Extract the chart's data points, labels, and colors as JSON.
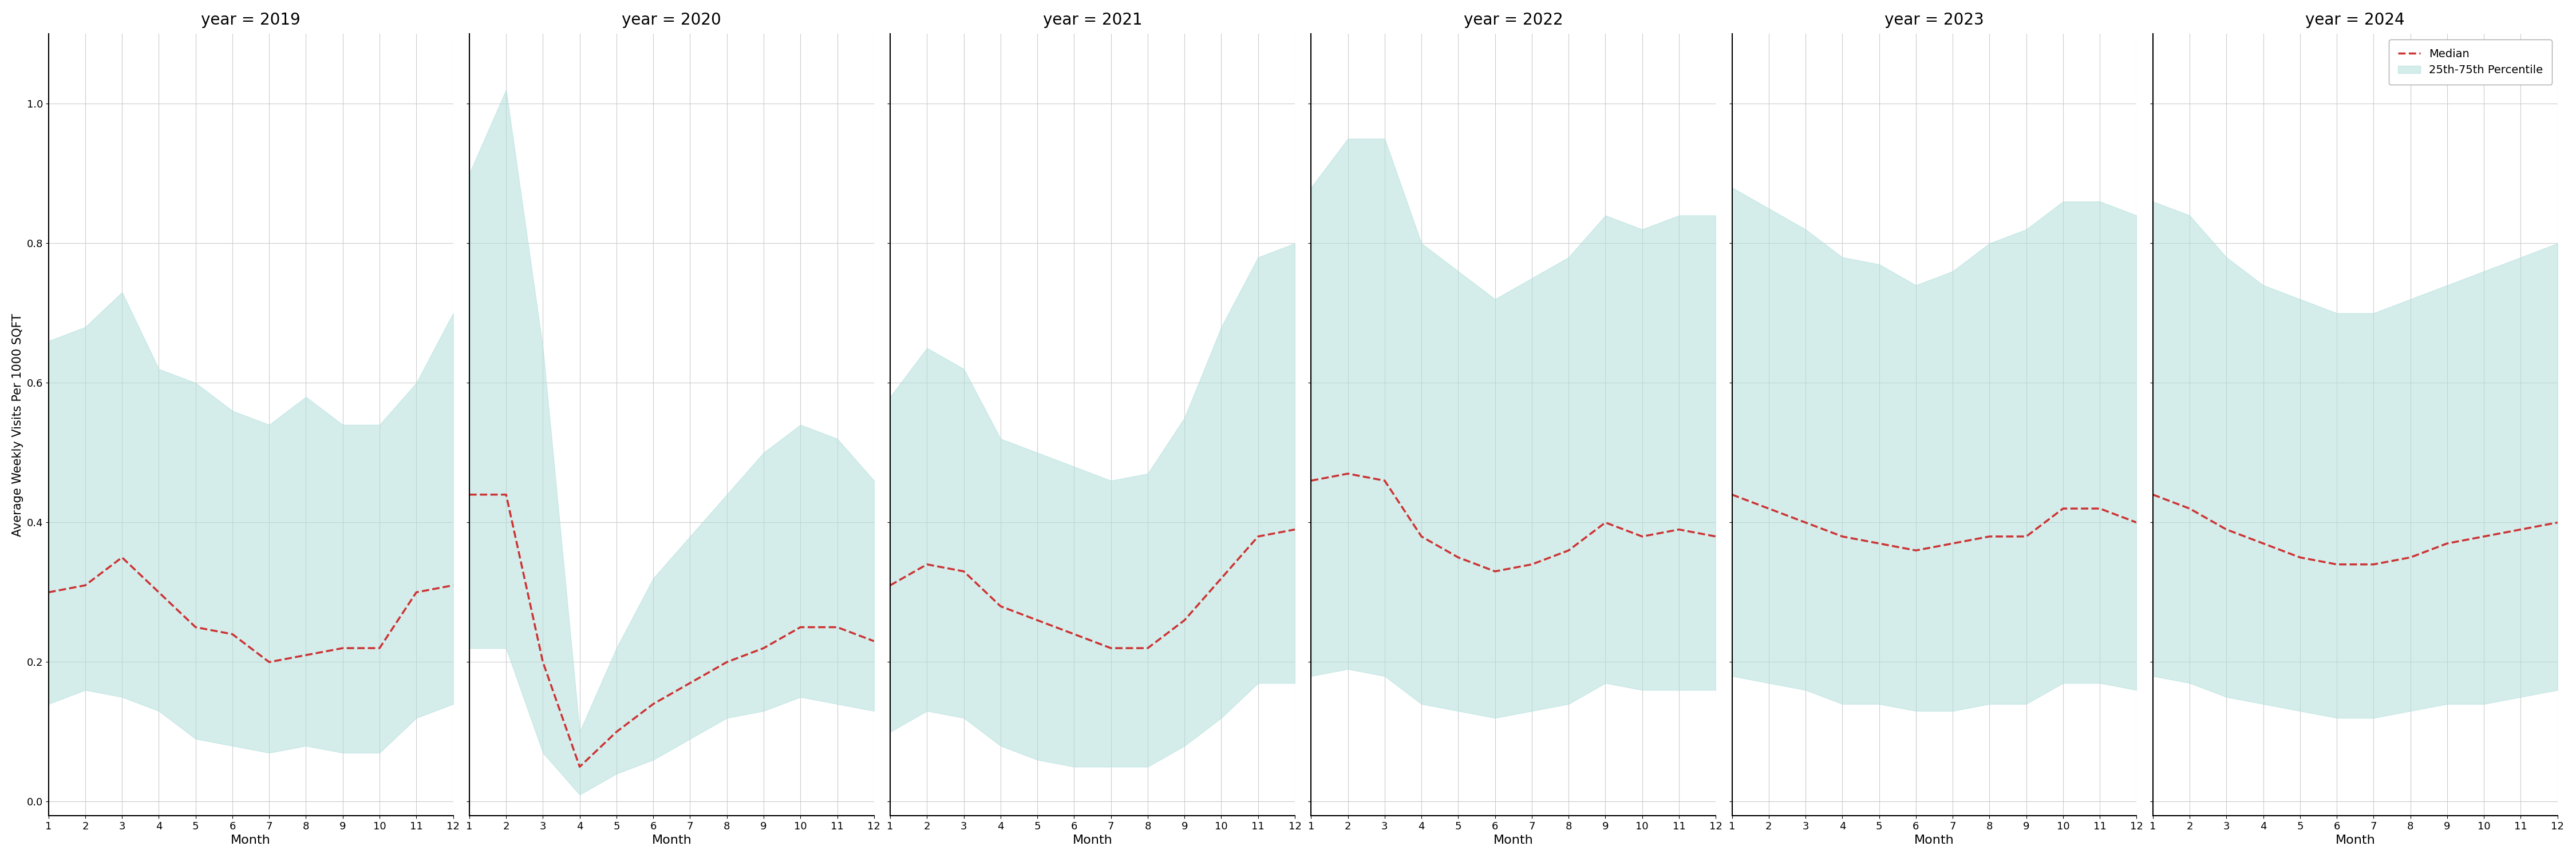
{
  "years": [
    2019,
    2020,
    2021,
    2022,
    2023,
    2024
  ],
  "months": [
    1,
    2,
    3,
    4,
    5,
    6,
    7,
    8,
    9,
    10,
    11,
    12
  ],
  "median": {
    "2019": [
      0.3,
      0.31,
      0.35,
      0.3,
      0.25,
      0.24,
      0.2,
      0.21,
      0.22,
      0.22,
      0.3,
      0.31
    ],
    "2020": [
      0.44,
      0.44,
      0.2,
      0.05,
      0.1,
      0.14,
      0.17,
      0.2,
      0.22,
      0.25,
      0.25,
      0.23
    ],
    "2021": [
      0.31,
      0.34,
      0.33,
      0.28,
      0.26,
      0.24,
      0.22,
      0.22,
      0.26,
      0.32,
      0.38,
      0.39
    ],
    "2022": [
      0.46,
      0.47,
      0.46,
      0.38,
      0.35,
      0.33,
      0.34,
      0.36,
      0.4,
      0.38,
      0.39,
      0.38
    ],
    "2023": [
      0.44,
      0.42,
      0.4,
      0.38,
      0.37,
      0.36,
      0.37,
      0.38,
      0.38,
      0.42,
      0.42,
      0.4
    ],
    "2024": [
      0.44,
      0.42,
      0.39,
      0.37,
      0.35,
      0.34,
      0.34,
      0.35,
      0.37,
      0.38,
      0.39,
      0.4
    ]
  },
  "p25": {
    "2019": [
      0.14,
      0.16,
      0.15,
      0.13,
      0.09,
      0.08,
      0.07,
      0.08,
      0.07,
      0.07,
      0.12,
      0.14
    ],
    "2020": [
      0.22,
      0.22,
      0.07,
      0.01,
      0.04,
      0.06,
      0.09,
      0.12,
      0.13,
      0.15,
      0.14,
      0.13
    ],
    "2021": [
      0.1,
      0.13,
      0.12,
      0.08,
      0.06,
      0.05,
      0.05,
      0.05,
      0.08,
      0.12,
      0.17,
      0.17
    ],
    "2022": [
      0.18,
      0.19,
      0.18,
      0.14,
      0.13,
      0.12,
      0.13,
      0.14,
      0.17,
      0.16,
      0.16,
      0.16
    ],
    "2023": [
      0.18,
      0.17,
      0.16,
      0.14,
      0.14,
      0.13,
      0.13,
      0.14,
      0.14,
      0.17,
      0.17,
      0.16
    ],
    "2024": [
      0.18,
      0.17,
      0.15,
      0.14,
      0.13,
      0.12,
      0.12,
      0.13,
      0.14,
      0.14,
      0.15,
      0.16
    ]
  },
  "p75": {
    "2019": [
      0.66,
      0.68,
      0.73,
      0.62,
      0.6,
      0.56,
      0.54,
      0.58,
      0.54,
      0.54,
      0.6,
      0.7
    ],
    "2020": [
      0.9,
      1.02,
      0.65,
      0.1,
      0.22,
      0.32,
      0.38,
      0.44,
      0.5,
      0.54,
      0.52,
      0.46
    ],
    "2021": [
      0.58,
      0.65,
      0.62,
      0.52,
      0.5,
      0.48,
      0.46,
      0.47,
      0.55,
      0.68,
      0.78,
      0.8
    ],
    "2022": [
      0.88,
      0.95,
      0.95,
      0.8,
      0.76,
      0.72,
      0.75,
      0.78,
      0.84,
      0.82,
      0.84,
      0.84
    ],
    "2023": [
      0.88,
      0.85,
      0.82,
      0.78,
      0.77,
      0.74,
      0.76,
      0.8,
      0.82,
      0.86,
      0.86,
      0.84
    ],
    "2024": [
      0.86,
      0.84,
      0.78,
      0.74,
      0.72,
      0.7,
      0.7,
      0.72,
      0.74,
      0.76,
      0.78,
      0.8
    ]
  },
  "fill_color": "#b2dfdb",
  "fill_alpha": 0.55,
  "line_color": "#cc3333",
  "line_style": "--",
  "line_width": 2.5,
  "ylabel": "Average Weekly Visits Per 1000 SQFT",
  "xlabel": "Month",
  "ylim": [
    -0.02,
    1.1
  ],
  "yticks": [
    0.0,
    0.2,
    0.4,
    0.6,
    0.8,
    1.0
  ],
  "xticks": [
    1,
    2,
    3,
    4,
    5,
    6,
    7,
    8,
    9,
    10,
    11,
    12
  ],
  "background_color": "#ffffff",
  "grid_color": "#cccccc",
  "legend_median_label": "Median",
  "legend_fill_label": "25th-75th Percentile",
  "title_prefix": "year = "
}
